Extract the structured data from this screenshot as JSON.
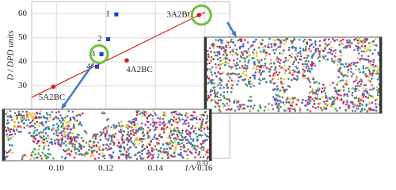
{
  "chart_data": {
    "type": "scatter",
    "x_label": "1/V",
    "x_label_superscript": "0.33",
    "y_label": "D / DPD units",
    "xlim": [
      0.09,
      0.17
    ],
    "xticks": [
      {
        "value": 0.1,
        "label": "0.10"
      },
      0.12,
      0.14,
      0.16
    ],
    "ylim": [
      0,
      65
    ],
    "yticks": [
      30,
      40,
      50,
      60
    ],
    "grid": true,
    "series": [
      {
        "color": "#1f3fd0",
        "marker": "square",
        "x": [
          0.1242,
          0.1209,
          0.1182,
          0.1164
        ],
        "values": [
          59.7,
          49.4,
          43.2,
          38
        ],
        "point_labels": [
          "1",
          "2",
          "3",
          "4"
        ]
      },
      {
        "color": "#d42020",
        "marker": "circle",
        "x": [
          0.0988,
          0.1284,
          0.1576
        ],
        "values": [
          29.7,
          40.6,
          59.4
        ],
        "point_labels": [
          "5A2BC",
          "4A2BC",
          "3A2BC"
        ]
      }
    ],
    "fit_line": {
      "color": "#e02020",
      "x": [
        0.09,
        0.16
      ],
      "values": [
        25.3,
        60.6
      ]
    }
  }
}
